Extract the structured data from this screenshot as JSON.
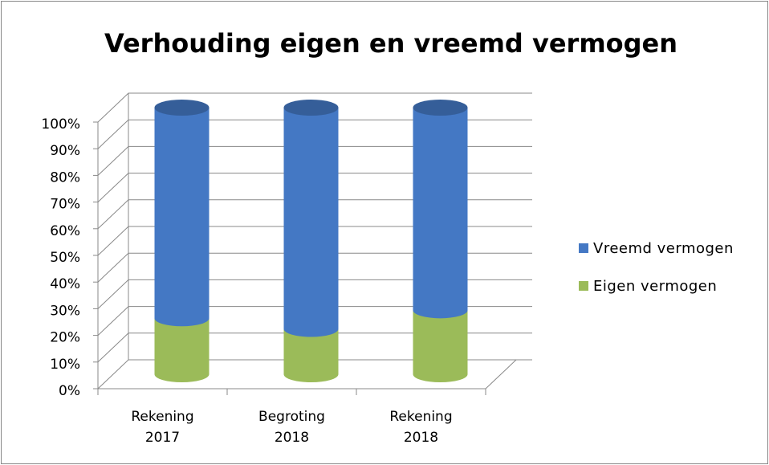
{
  "chart_data": {
    "type": "bar3d_stacked",
    "title": "Verhouding eigen en vreemd vermogen",
    "categories": [
      "Rekening 2017",
      "Begroting 2018",
      "Rekening 2018"
    ],
    "series": [
      {
        "name": "Eigen vermogen",
        "color": "#9bbb59",
        "values": [
          21,
          17,
          24
        ]
      },
      {
        "name": "Vreemd vermogen",
        "color": "#4478c4",
        "values": [
          79,
          83,
          76
        ]
      }
    ],
    "ylim": [
      0,
      100
    ],
    "yticks": [
      {
        "value": 0,
        "label": "0%"
      },
      {
        "value": 10,
        "label": "10%"
      },
      {
        "value": 20,
        "label": "20%"
      },
      {
        "value": 30,
        "label": "30%"
      },
      {
        "value": 40,
        "label": "40%"
      },
      {
        "value": 50,
        "label": "50%"
      },
      {
        "value": 60,
        "label": "60%"
      },
      {
        "value": 70,
        "label": "70%"
      },
      {
        "value": 80,
        "label": "80%"
      },
      {
        "value": 90,
        "label": "90%"
      },
      {
        "value": 100,
        "label": "100%"
      }
    ],
    "grid": true,
    "legend": "right"
  }
}
